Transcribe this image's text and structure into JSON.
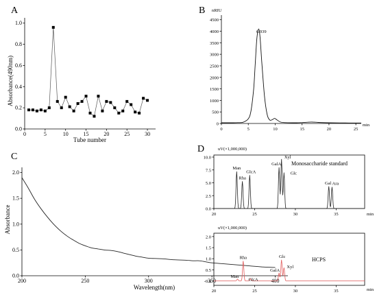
{
  "chart_data": [
    {
      "id": "A",
      "type": "line",
      "panel_label": "A",
      "xlabel": "Tube number",
      "ylabel": "Absorbance(490nm)",
      "xlim": [
        0,
        32
      ],
      "ylim": [
        0,
        1.05
      ],
      "x_ticks": [
        "0",
        "5",
        "10",
        "15",
        "20",
        "25",
        "30"
      ],
      "y_ticks": [
        "0.0",
        "0.2",
        "0.4",
        "0.6",
        "0.8",
        "1.0"
      ],
      "marker": "square",
      "series": [
        {
          "x": [
            1,
            2,
            3,
            4,
            5,
            6,
            7,
            8,
            9,
            10,
            11,
            12,
            13,
            14,
            15,
            16,
            17,
            18,
            19,
            20,
            21,
            22,
            23,
            24,
            25,
            26,
            27,
            28,
            29,
            30
          ],
          "values": [
            0.18,
            0.18,
            0.17,
            0.18,
            0.17,
            0.2,
            0.96,
            0.26,
            0.2,
            0.3,
            0.21,
            0.17,
            0.24,
            0.26,
            0.31,
            0.15,
            0.12,
            0.31,
            0.17,
            0.26,
            0.25,
            0.2,
            0.15,
            0.17,
            0.26,
            0.23,
            0.16,
            0.15,
            0.29,
            0.27
          ]
        }
      ]
    },
    {
      "id": "B",
      "type": "line",
      "panel_label": "B",
      "unit_label": "nRIU",
      "xlabel": "min",
      "xlim": [
        0,
        26
      ],
      "ylim": [
        0,
        4700
      ],
      "x_ticks": [
        "0",
        "5",
        "10",
        "15",
        "20",
        "25"
      ],
      "y_ticks": [
        "0",
        "500",
        "1000",
        "1500",
        "2000",
        "2500",
        "3000",
        "3500",
        "4000",
        "4500"
      ],
      "peak_label": "6.939",
      "series": [
        {
          "x": [
            0,
            1,
            2,
            3,
            4,
            5,
            5.5,
            6,
            6.3,
            6.6,
            6.939,
            7.2,
            7.5,
            8,
            8.5,
            9,
            9.5,
            9.9,
            10.3,
            11,
            12,
            14,
            15,
            16,
            17,
            18,
            20,
            22,
            24,
            26
          ],
          "values": [
            30,
            30,
            30,
            35,
            50,
            200,
            550,
            1500,
            2600,
            3700,
            4100,
            3700,
            2700,
            1200,
            400,
            150,
            170,
            220,
            160,
            60,
            35,
            30,
            40,
            55,
            60,
            45,
            30,
            25,
            20,
            20
          ]
        }
      ]
    },
    {
      "id": "C",
      "type": "line",
      "panel_label": "C",
      "xlabel": "Wavelength(nm)",
      "ylabel": "Absorbance",
      "xlim": [
        200,
        410
      ],
      "ylim": [
        0,
        2.1
      ],
      "x_ticks": [
        "200",
        "250",
        "300",
        "350",
        "400"
      ],
      "y_ticks": [
        "0.0",
        "0.5",
        "1.0",
        "1.5",
        "2.0"
      ],
      "series": [
        {
          "x": [
            200,
            205,
            210,
            215,
            220,
            225,
            230,
            235,
            240,
            245,
            250,
            255,
            260,
            265,
            270,
            275,
            280,
            285,
            290,
            295,
            300,
            310,
            320,
            330,
            335,
            340,
            345,
            350,
            360,
            370,
            380,
            390,
            400
          ],
          "values": [
            1.9,
            1.7,
            1.48,
            1.3,
            1.14,
            1.0,
            0.88,
            0.78,
            0.7,
            0.63,
            0.58,
            0.54,
            0.52,
            0.5,
            0.49,
            0.47,
            0.44,
            0.41,
            0.38,
            0.36,
            0.34,
            0.33,
            0.31,
            0.3,
            0.29,
            0.29,
            0.27,
            0.25,
            0.23,
            0.21,
            0.19,
            0.17,
            0.16
          ]
        }
      ]
    },
    {
      "id": "D-standard",
      "type": "line",
      "panel_label": "D",
      "unit_label": "uV(×1,000,000)",
      "title": "Monosaccharide standard",
      "xlabel": "min",
      "xlim": [
        20,
        38.5
      ],
      "ylim": [
        0,
        10.4
      ],
      "x_ticks": [
        "20",
        "25",
        "30",
        "35"
      ],
      "y_ticks": [
        "0.0",
        "2.5",
        "5.0",
        "7.5",
        "10.0"
      ],
      "color": "#222222",
      "peaks": [
        {
          "name": "Man",
          "x": 22.8,
          "value": 7.2
        },
        {
          "name": "Rha",
          "x": 23.5,
          "value": 5.3
        },
        {
          "name": "GlcA",
          "x": 24.4,
          "value": 6.5
        },
        {
          "name": "GalA",
          "x": 28.0,
          "value": 8.0
        },
        {
          "name": "Xyl",
          "x": 28.3,
          "value": 9.6
        },
        {
          "name": "Glc",
          "x": 28.6,
          "value": 7.0
        },
        {
          "name": "Gal",
          "x": 34.1,
          "value": 4.3
        },
        {
          "name": "Ara",
          "x": 34.5,
          "value": 4.2
        }
      ]
    },
    {
      "id": "D-HCPS",
      "type": "line",
      "unit_label": "uV(×1,000,000)",
      "title": "HCPS",
      "xlabel": "min",
      "xlim": [
        20,
        38.5
      ],
      "ylim": [
        -0.2,
        2.15
      ],
      "x_ticks": [
        "20",
        "25",
        "30",
        "35"
      ],
      "y_ticks": [
        "-0.0",
        "0.5",
        "1.0",
        "1.5",
        "2.0"
      ],
      "color": "#e05a5a",
      "peaks": [
        {
          "name": "Man",
          "x": 22.9,
          "value": 0.08
        },
        {
          "name": "Rha",
          "x": 23.6,
          "value": 0.9
        },
        {
          "name": "GlcA",
          "x": 24.5,
          "value": 0.1
        },
        {
          "name": "GalA",
          "x": 28.0,
          "value": 0.35
        },
        {
          "name": "Glc",
          "x": 28.3,
          "value": 0.95
        },
        {
          "name": "Xyl",
          "x": 28.6,
          "value": 0.6
        }
      ]
    }
  ]
}
